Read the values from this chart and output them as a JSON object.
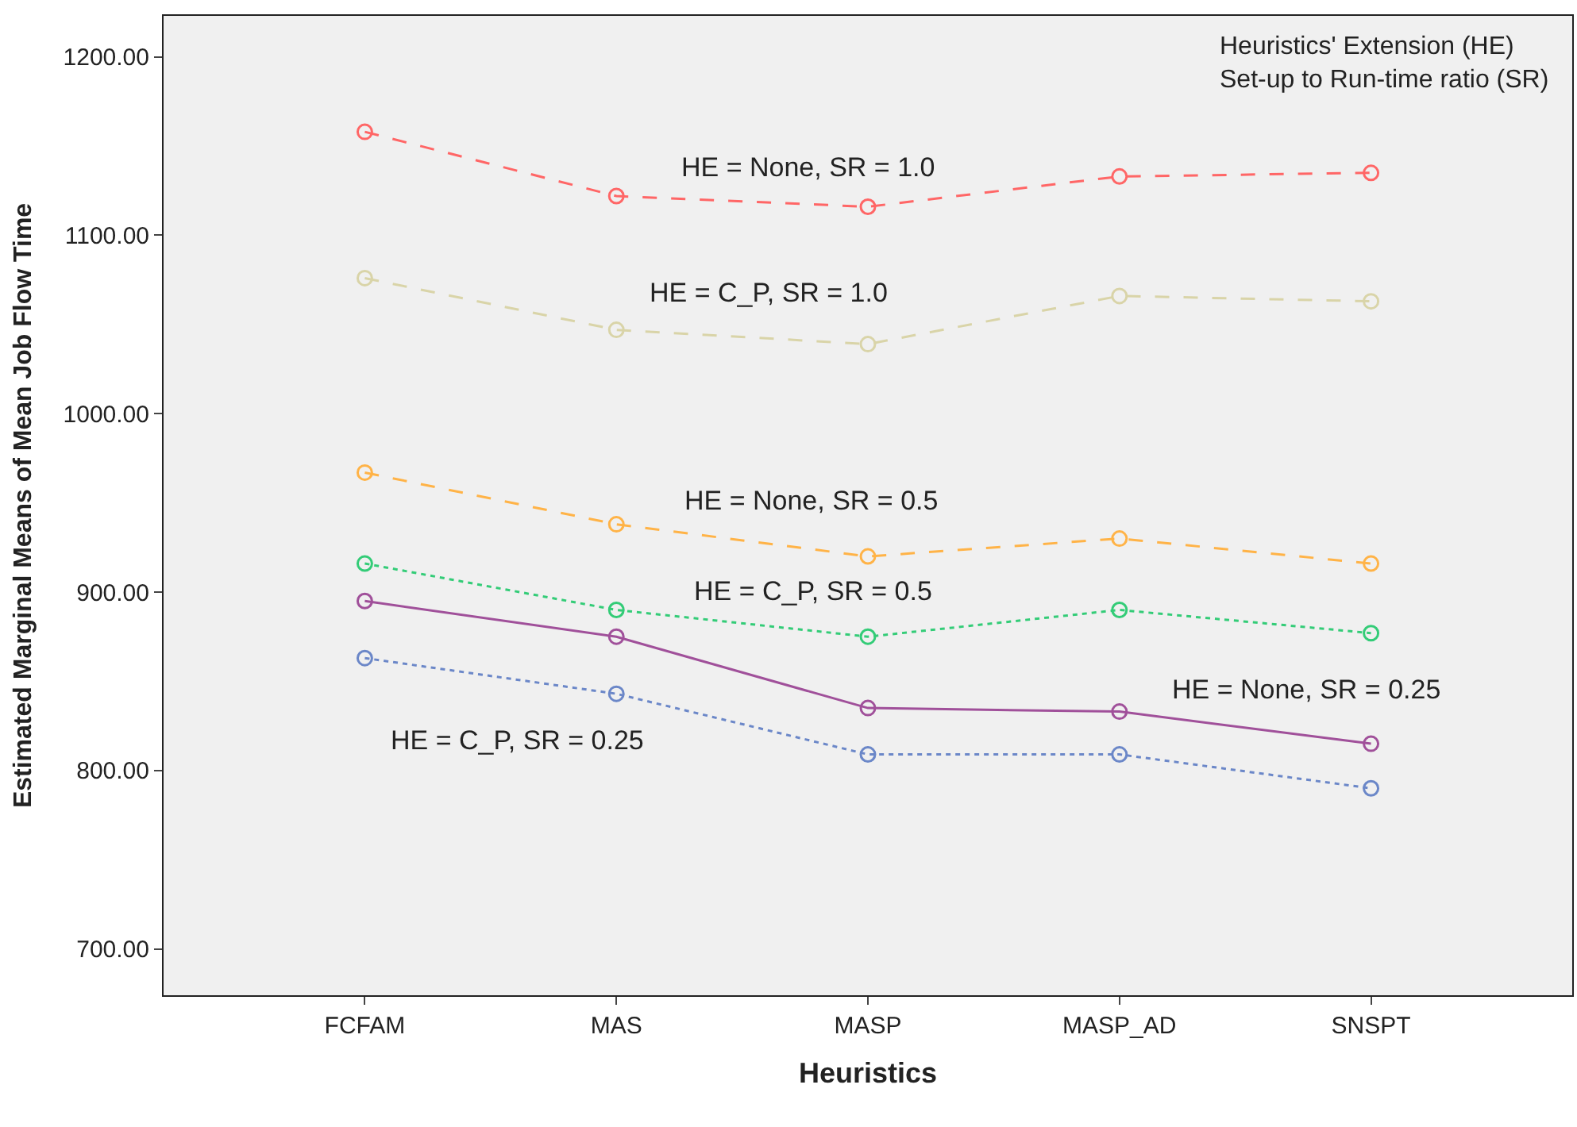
{
  "chart_data": {
    "type": "line",
    "xlabel": "Heuristics",
    "ylabel": "Estimated Marginal Means of Mean Job Flow Time",
    "legend_title": "Heuristics' Extension (HE)\nSet-up to Run-time ratio (SR)",
    "grid": false,
    "marker": "circle",
    "categories": [
      "FCFAM",
      "MAS",
      "MASP",
      "MASP_AD",
      "SNSPT"
    ],
    "ylim": [
      674,
      1223
    ],
    "yticks": [
      {
        "value": 700,
        "label": "700.00"
      },
      {
        "value": 800,
        "label": "800.00"
      },
      {
        "value": 900,
        "label": "900.00"
      },
      {
        "value": 1000,
        "label": "1000.00"
      },
      {
        "value": 1100,
        "label": "1100.00"
      },
      {
        "value": 1200,
        "label": "1200.00"
      }
    ],
    "series": [
      {
        "name": "HE = None, SR = 1.0",
        "color": "#ff6666",
        "line_style": "dashed",
        "values": [
          1158,
          1122,
          1116,
          1133,
          1135
        ]
      },
      {
        "name": "HE = C_P, SR = 1.0",
        "color": "#d9d4a8",
        "line_style": "dashed",
        "values": [
          1076,
          1047,
          1039,
          1066,
          1063
        ]
      },
      {
        "name": "HE = None, SR = 0.5",
        "color": "#ffb347",
        "line_style": "dashed",
        "values": [
          967,
          938,
          920,
          930,
          916
        ]
      },
      {
        "name": "HE = C_P, SR = 0.5",
        "color": "#33cc77",
        "line_style": "dotted",
        "values": [
          916,
          890,
          875,
          890,
          877
        ]
      },
      {
        "name": "HE = None, SR = 0.25",
        "color": "#a0509a",
        "line_style": "solid",
        "values": [
          895,
          875,
          835,
          833,
          815
        ]
      },
      {
        "name": "HE = C_P, SR = 0.25",
        "color": "#6b87c8",
        "line_style": "dotted",
        "values": [
          863,
          843,
          809,
          809,
          790
        ]
      }
    ]
  }
}
